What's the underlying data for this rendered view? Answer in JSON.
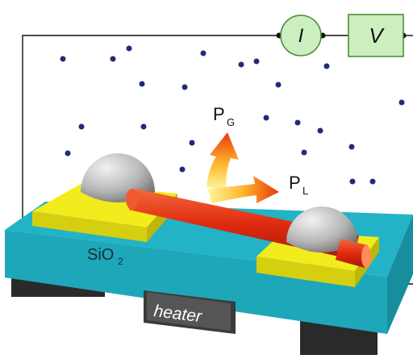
{
  "labels": {
    "current": "I",
    "voltage": "V",
    "pg_main": "P",
    "pg_sub": "G",
    "pl_main": "P",
    "pl_sub": "L",
    "sio2_main": "SiO",
    "sio2_sub": "2",
    "heater": "heater"
  },
  "colors": {
    "substrate_top": "#22b3c6",
    "substrate_side": "#1a9aab",
    "electrode": "#f2ec1c",
    "meter_fill": "#ccefc0",
    "meter_stroke": "#3f8a2f",
    "wire": "#111111",
    "particle": "#1f2c7a",
    "heater_block": "#2a2a2a",
    "heater_label_bg": "#555555",
    "nanowire": "#e03a1c",
    "dome": "#b9b9b9"
  }
}
